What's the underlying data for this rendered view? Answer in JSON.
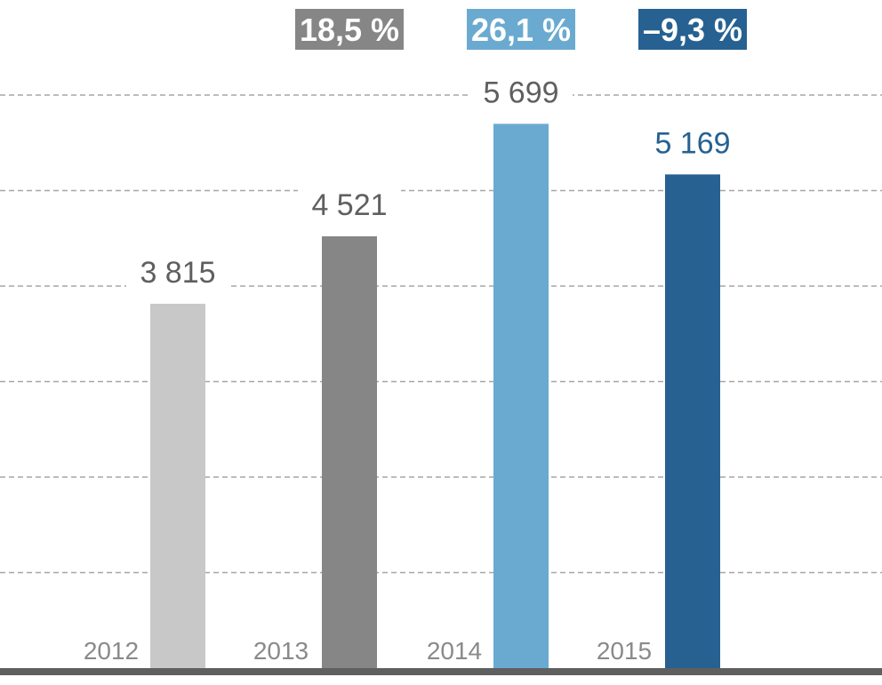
{
  "chart_data": {
    "type": "bar",
    "categories": [
      "2012",
      "2013",
      "2014",
      "2015"
    ],
    "values": [
      3815,
      4521,
      5699,
      5169
    ],
    "value_labels": [
      "3 815",
      "4 521",
      "5 699",
      "5 169"
    ],
    "bar_colors": [
      "#c8c8c8",
      "#868686",
      "#6aaad0",
      "#266191"
    ],
    "value_label_colors": [
      "#5f5f5f",
      "#5f5f5f",
      "#5f5f5f",
      "#266191"
    ],
    "changes": [
      {
        "label": "18,5 %",
        "color": "#868686"
      },
      {
        "label": "26,1 %",
        "color": "#6aaad0"
      },
      {
        "label": "–9,3 %",
        "color": "#266191"
      }
    ],
    "ylim": [
      0,
      6000
    ],
    "gridline_values": [
      1000,
      2000,
      3000,
      4000,
      5000,
      6000
    ],
    "grid": true,
    "legend": "none",
    "title": "",
    "xlabel": "",
    "ylabel": ""
  }
}
